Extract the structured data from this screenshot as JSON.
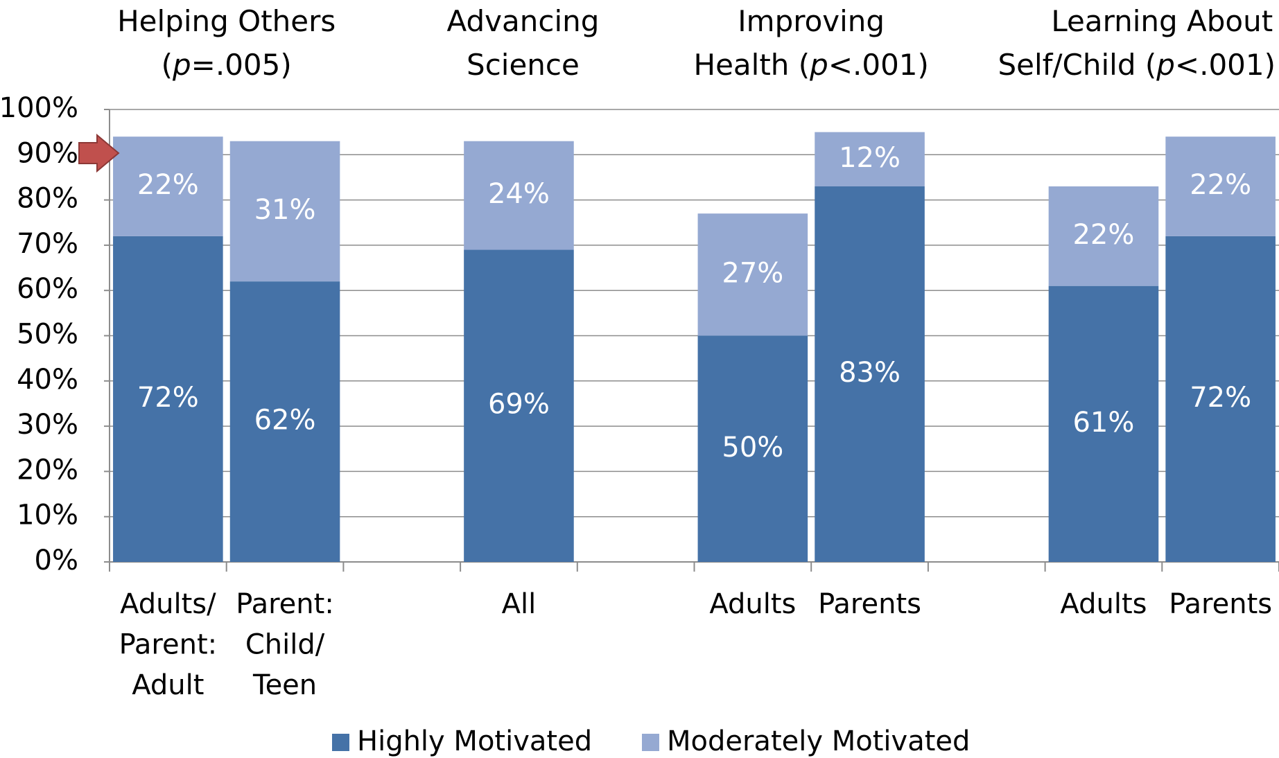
{
  "chart_data": {
    "type": "stacked_bar",
    "groups": [
      {
        "title": [
          [
            {
              "text": "Helping Others"
            }
          ],
          [
            {
              "text": "("
            },
            {
              "text": "p",
              "italic": true
            },
            {
              "text": "=.005)"
            }
          ]
        ]
      },
      {
        "title": [
          [
            {
              "text": "Advancing"
            }
          ],
          [
            {
              "text": "Science"
            }
          ]
        ]
      },
      {
        "title": [
          [
            {
              "text": "Improving"
            }
          ],
          [
            {
              "text": "Health ("
            },
            {
              "text": "p",
              "italic": true
            },
            {
              "text": "<.001)"
            }
          ]
        ]
      },
      {
        "title": [
          [
            {
              "text": "Learning About"
            }
          ],
          [
            {
              "text": "Self/Child ("
            },
            {
              "text": "p",
              "italic": true
            },
            {
              "text": "<.001)"
            }
          ]
        ]
      }
    ],
    "categories": [
      [
        "Adults/",
        "Parent:",
        "Adult"
      ],
      [
        "Parent:",
        "Child/",
        "Teen"
      ],
      null,
      [
        "All"
      ],
      null,
      [
        "Adults"
      ],
      [
        "Parents"
      ],
      null,
      [
        "Adults"
      ],
      [
        "Parents"
      ]
    ],
    "series": [
      {
        "name": "Highly Motivated",
        "color": "#4572a7",
        "values": [
          72,
          62,
          null,
          69,
          null,
          50,
          83,
          null,
          61,
          72
        ],
        "value_labels": [
          "72%",
          "62%",
          null,
          "69%",
          null,
          "50%",
          "83%",
          null,
          "61%",
          "72%"
        ]
      },
      {
        "name": "Moderately Motivated",
        "color": "#95a9d2",
        "values": [
          22,
          31,
          null,
          24,
          null,
          27,
          12,
          null,
          22,
          22
        ],
        "value_labels": [
          "22%",
          "31%",
          null,
          "24%",
          null,
          "27%",
          "12%",
          null,
          "22%",
          "22%"
        ]
      }
    ],
    "ylim": [
      0,
      100
    ],
    "yticks": [
      {
        "value": 0,
        "label": "0%"
      },
      {
        "value": 10,
        "label": "10%"
      },
      {
        "value": 20,
        "label": "20%"
      },
      {
        "value": 30,
        "label": "30%"
      },
      {
        "value": 40,
        "label": "40%"
      },
      {
        "value": 50,
        "label": "50%"
      },
      {
        "value": 60,
        "label": "60%"
      },
      {
        "value": 70,
        "label": "70%"
      },
      {
        "value": 80,
        "label": "80%"
      },
      {
        "value": 90,
        "label": "90%"
      },
      {
        "value": 100,
        "label": "100%"
      }
    ],
    "grid": true,
    "legend": "bottom"
  }
}
